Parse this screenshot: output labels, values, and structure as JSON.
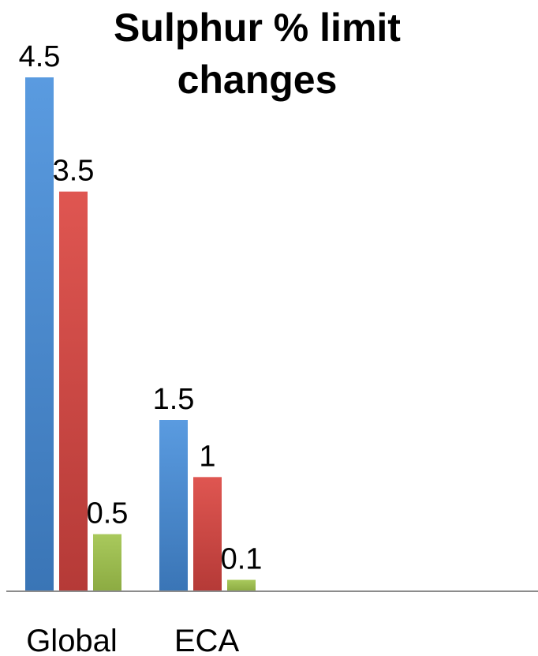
{
  "chart_data": {
    "type": "bar",
    "title": "Sulphur % limit changes",
    "title_lines": [
      "Sulphur % limit",
      "changes"
    ],
    "categories": [
      "Global",
      "ECA"
    ],
    "series": [
      {
        "values": [
          4.5,
          1.5
        ],
        "color": "#4a89cf"
      },
      {
        "values": [
          3.5,
          1
        ],
        "color": "#cd4a46"
      },
      {
        "values": [
          0.5,
          0.1
        ],
        "color": "#9bbb4f"
      }
    ],
    "data_labels": [
      [
        "4.5",
        "1.5"
      ],
      [
        "3.5",
        "1"
      ],
      [
        "0.5",
        "0.1"
      ]
    ],
    "ylim": [
      0,
      4.5
    ],
    "grid": false,
    "legend": "none",
    "xlabel": "",
    "ylabel": ""
  }
}
